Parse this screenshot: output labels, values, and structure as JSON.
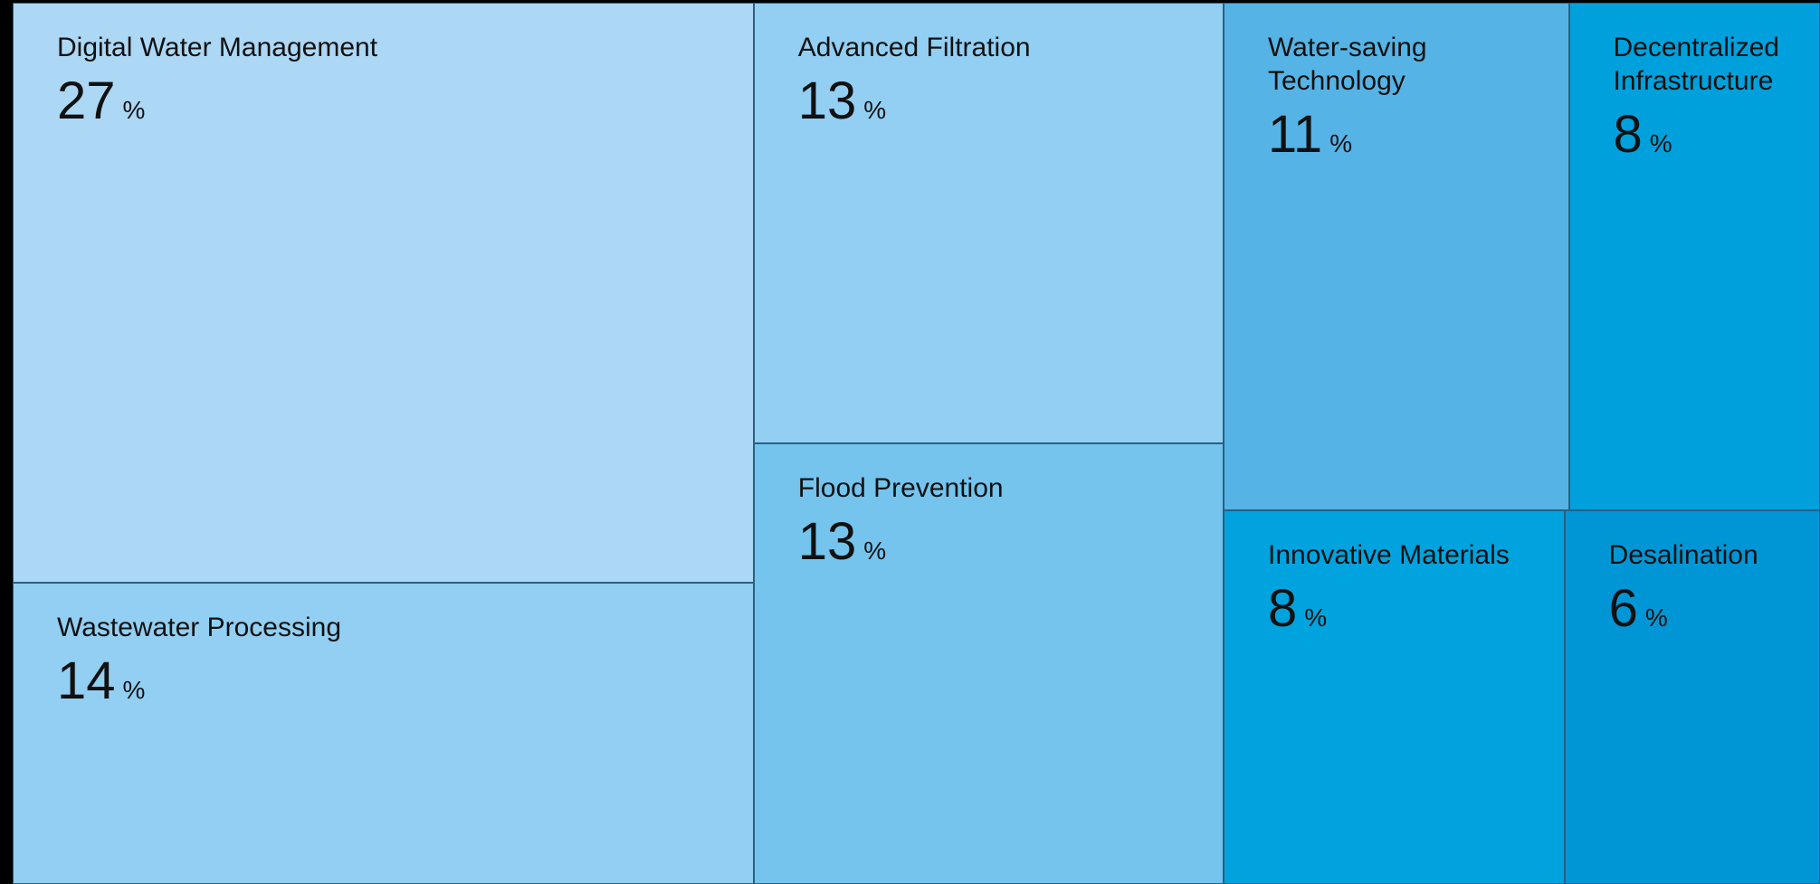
{
  "chart_data": {
    "type": "treemap",
    "categories": [
      "Digital Water Management",
      "Wastewater Processing",
      "Advanced Filtration",
      "Flood Prevention",
      "Water-saving Technology",
      "Decentralized Infrastructure",
      "Innovative Materials",
      "Desalination"
    ],
    "values": [
      27,
      14,
      13,
      13,
      11,
      8,
      8,
      6
    ],
    "unit": "%",
    "colors": [
      "#acd8f6",
      "#92cff3",
      "#92cff3",
      "#74c4ee",
      "#56b3e6",
      "#00a0dc",
      "#00a3de",
      "#0096d6"
    ]
  }
}
